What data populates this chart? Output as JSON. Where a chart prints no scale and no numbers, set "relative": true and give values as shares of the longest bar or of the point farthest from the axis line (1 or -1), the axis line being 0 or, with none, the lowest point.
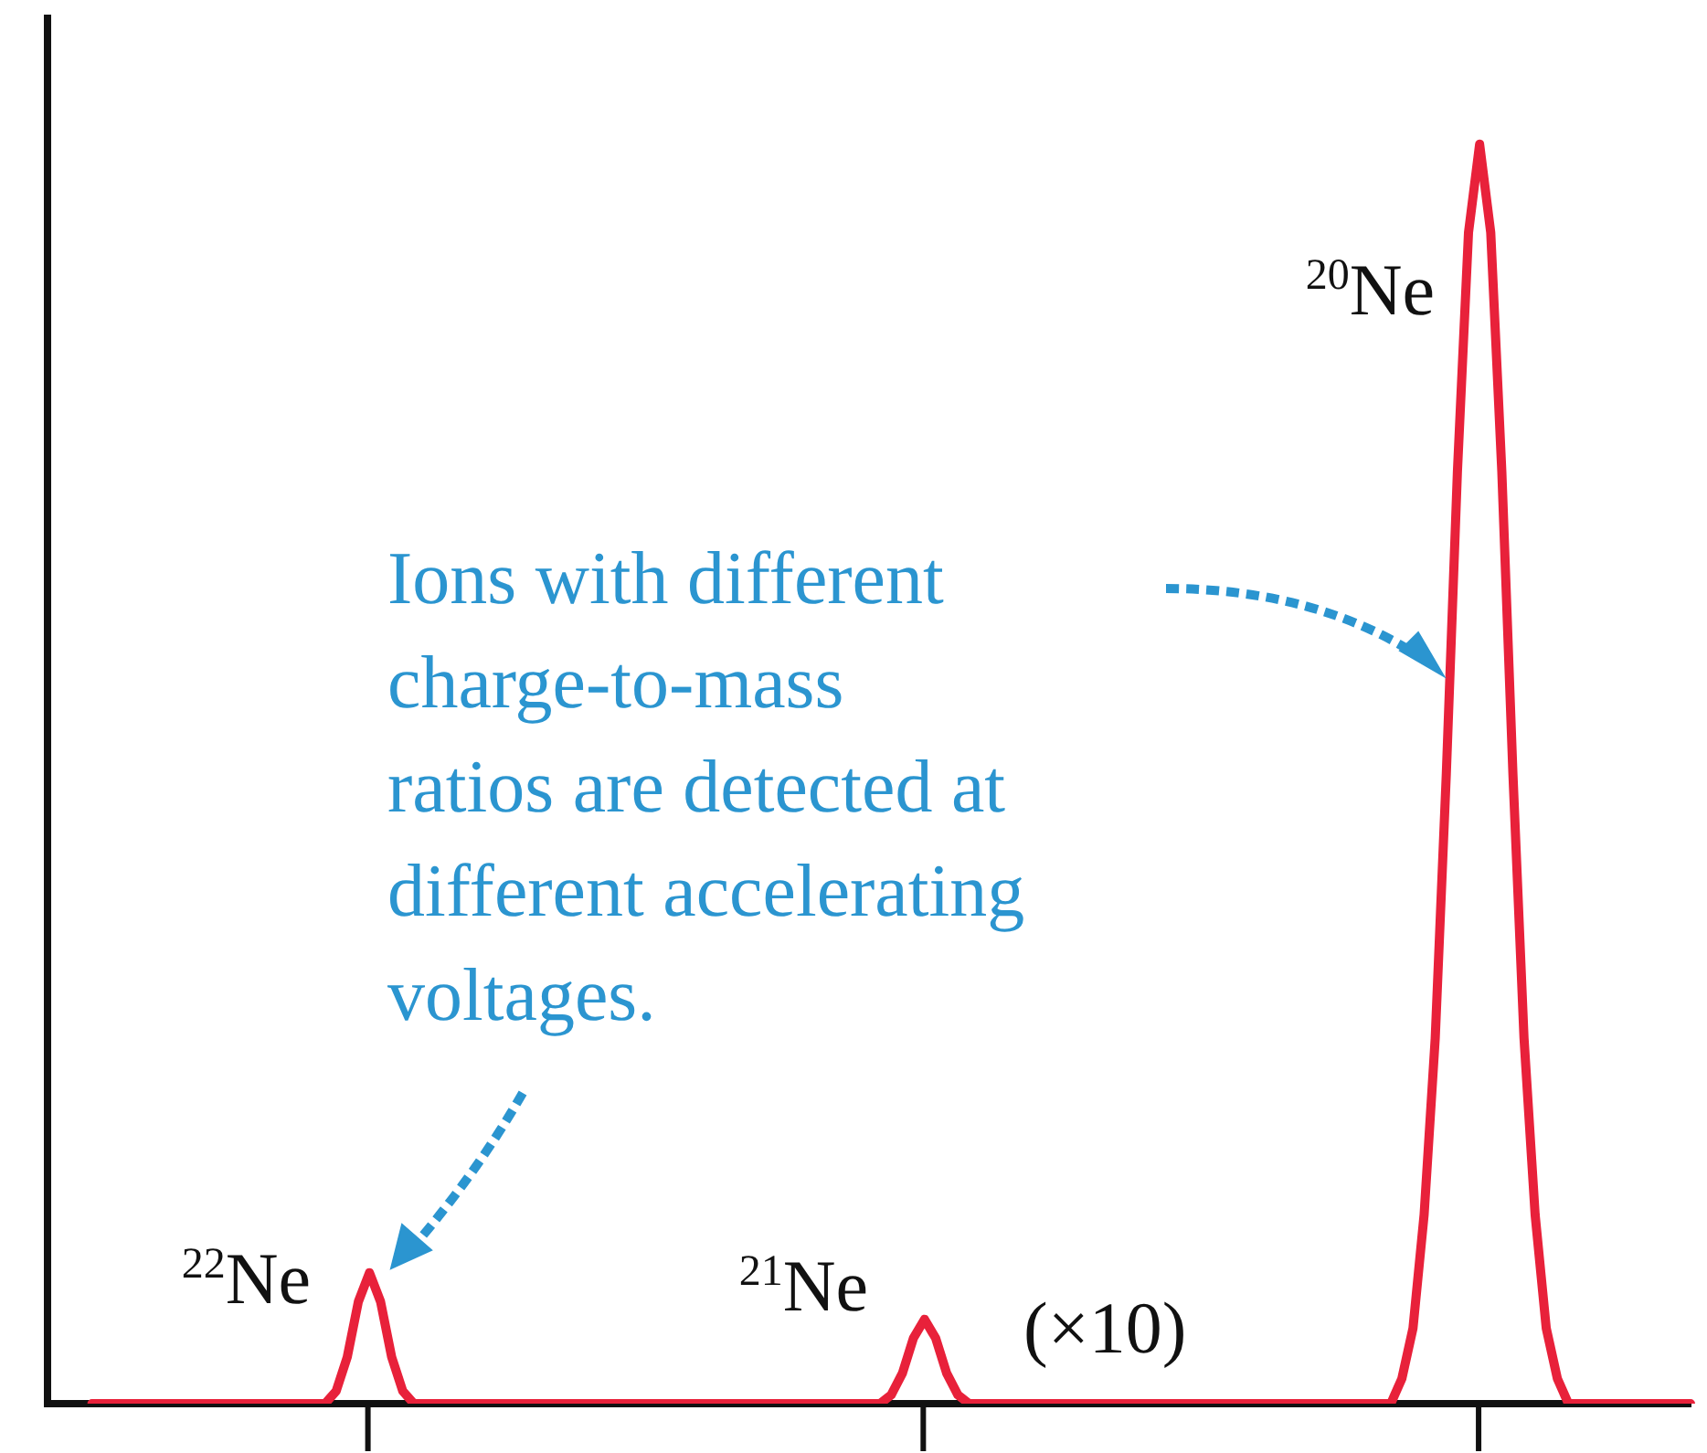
{
  "chart_data": {
    "type": "line",
    "relative": true,
    "marker": "none",
    "line_style": "solid",
    "legend": false,
    "grid": false,
    "categories": [
      null,
      null,
      null,
      null,
      null,
      null,
      null,
      null,
      null,
      null,
      null,
      null,
      null,
      null,
      null,
      null,
      null,
      null,
      null,
      null,
      null,
      null,
      null,
      null,
      null,
      null,
      null,
      null,
      null,
      null,
      null,
      null,
      null,
      null,
      null,
      null,
      null,
      null,
      null,
      null,
      null,
      null,
      null,
      null,
      null,
      null,
      null,
      null,
      null,
      null,
      null,
      null,
      null,
      null,
      null,
      null,
      null,
      null,
      null,
      null,
      null,
      null,
      null,
      null,
      null,
      null,
      null,
      null,
      null,
      null,
      null,
      null,
      null,
      null,
      null,
      null,
      null,
      null,
      null,
      null,
      null,
      null,
      null,
      null,
      null,
      null,
      null,
      null,
      null,
      null,
      null,
      null,
      null,
      null,
      null,
      null,
      null,
      null,
      null,
      null,
      null,
      null,
      null,
      null,
      null,
      null,
      null,
      null,
      null,
      null,
      null,
      null,
      null,
      null,
      null,
      null,
      null,
      null,
      null,
      null,
      null,
      null,
      null,
      null,
      null,
      null,
      null,
      null,
      null,
      null,
      null,
      null,
      null,
      null,
      null,
      null,
      null,
      null,
      null,
      null,
      null,
      null,
      null,
      null,
      null,
      null,
      null,
      null,
      null
    ],
    "series": [
      {
        "color": "#e8213a",
        "values": [
          null,
          null,
          null,
          null,
          0,
          0,
          0,
          0,
          0,
          0,
          0,
          0,
          0,
          0,
          0,
          0,
          0,
          0,
          0,
          0,
          0,
          0,
          0,
          0,
          0,
          0,
          0.01,
          0.037,
          0.081,
          0.104,
          0.081,
          0.037,
          0.01,
          0,
          0,
          0,
          0,
          0,
          0,
          0,
          0,
          0,
          0,
          0,
          0,
          0,
          0,
          0,
          0,
          0,
          0,
          0,
          0,
          0,
          0,
          0,
          0,
          0,
          0,
          0,
          0,
          0,
          0,
          0,
          0,
          0,
          0,
          0,
          0,
          0,
          0,
          0,
          0,
          0,
          0,
          0,
          0.007,
          0.024,
          0.052,
          0.067,
          0.052,
          0.024,
          0.007,
          0,
          0,
          0,
          0,
          0,
          0,
          0,
          0,
          0,
          0,
          0,
          0,
          0,
          0,
          0,
          0,
          0,
          0,
          0,
          0,
          0,
          0,
          0,
          0,
          0,
          0,
          0,
          0,
          0,
          0,
          0,
          0,
          0,
          0,
          0,
          0,
          0,
          0,
          0,
          0.02,
          0.06,
          0.15,
          0.29,
          0.5,
          0.74,
          0.93,
          1,
          0.93,
          0.74,
          0.5,
          0.29,
          0.15,
          0.06,
          0.02,
          0,
          0,
          0,
          0,
          0,
          0,
          0,
          0,
          0,
          0,
          0,
          0
        ]
      }
    ],
    "annotations": [
      "$^{22}$Ne",
      "$^{21}$Ne",
      "$^{20}$Ne",
      "(×10)",
      "Ions with different\ncharge-to-mass\nratios are detected at\ndifferent accelerating\nvoltages."
    ]
  }
}
